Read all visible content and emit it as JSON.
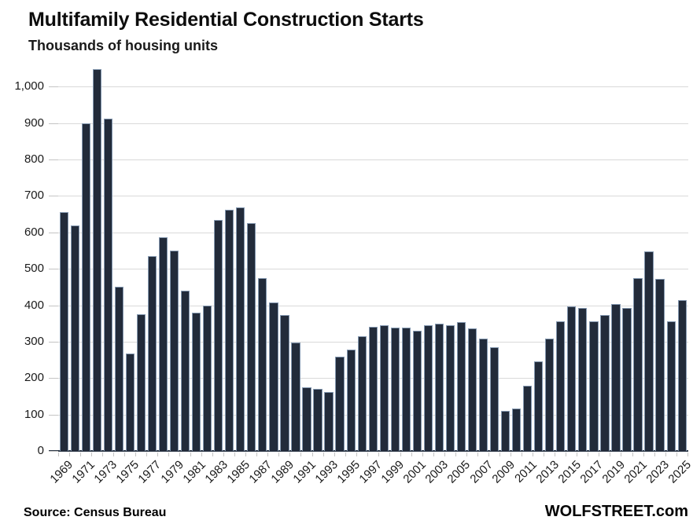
{
  "footer": {
    "source": "Source: Census Bureau",
    "brand": "WOLFSTREET.com"
  },
  "chart_data": {
    "type": "bar",
    "title": "Multifamily Residential Construction Starts",
    "subtitle": "Thousands of housing units",
    "categories": [
      "1969",
      "1970",
      "1971",
      "1972",
      "1973",
      "1974",
      "1975",
      "1976",
      "1977",
      "1978",
      "1979",
      "1980",
      "1981",
      "1982",
      "1983",
      "1984",
      "1985",
      "1986",
      "1987",
      "1988",
      "1989",
      "1990",
      "1991",
      "1992",
      "1993",
      "1994",
      "1995",
      "1996",
      "1997",
      "1998",
      "1999",
      "2000",
      "2001",
      "2002",
      "2003",
      "2004",
      "2005",
      "2006",
      "2007",
      "2008",
      "2009",
      "2010",
      "2011",
      "2012",
      "2013",
      "2014",
      "2015",
      "2016",
      "2017",
      "2018",
      "2019",
      "2020",
      "2021",
      "2022",
      "2023",
      "2024",
      "2025"
    ],
    "values": [
      655,
      620,
      900,
      1048,
      913,
      450,
      268,
      375,
      536,
      587,
      551,
      440,
      379,
      400,
      635,
      663,
      669,
      626,
      474,
      407,
      373,
      298,
      174,
      170,
      162,
      259,
      278,
      316,
      340,
      346,
      338,
      338,
      329,
      346,
      349,
      345,
      353,
      336,
      309,
      284,
      109,
      116,
      178,
      245,
      308,
      355,
      397,
      393,
      357,
      374,
      403,
      393,
      474,
      547,
      472,
      355,
      415
    ],
    "xlabel": "",
    "ylabel": "",
    "ylim": [
      0,
      1050
    ],
    "ytick_step": 100,
    "ytick_labels": [
      "0",
      "100",
      "200",
      "300",
      "400",
      "500",
      "600",
      "700",
      "800",
      "900",
      "1,000"
    ],
    "xtick_labels": [
      "1969",
      "1971",
      "1973",
      "1975",
      "1977",
      "1979",
      "1981",
      "1983",
      "1985",
      "1987",
      "1989",
      "1991",
      "1993",
      "1995",
      "1997",
      "1999",
      "2001",
      "2003",
      "2005",
      "2007",
      "2009",
      "2011",
      "2013",
      "2015",
      "2017",
      "2019",
      "2021",
      "2023",
      "2025"
    ],
    "grid": "horizontal",
    "legend_position": "none",
    "colors": {
      "bar_fill": "#222B3A",
      "bar_border": "#8498B0",
      "gridline": "#D9D9D9",
      "axis_line": "#2A3545",
      "tick": "#C4C4C4",
      "text": "#1A1A1A"
    }
  }
}
